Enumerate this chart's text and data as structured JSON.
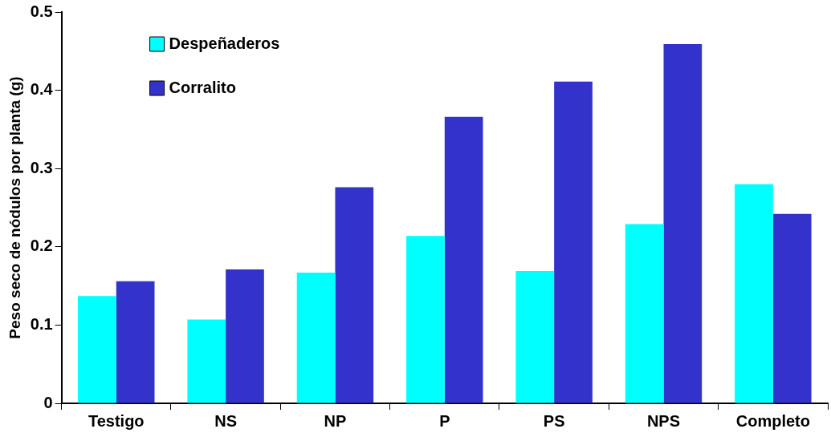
{
  "chart_data": {
    "type": "bar",
    "ylabel": "Peso seco de nódulos por planta (g)",
    "categories": [
      "Testigo",
      "NS",
      "NP",
      "P",
      "PS",
      "NPS",
      "Completo"
    ],
    "series": [
      {
        "name": "Despeñaderos",
        "color": "#00ffff",
        "values": [
          0.137,
          0.107,
          0.167,
          0.214,
          0.169,
          0.229,
          0.28
        ]
      },
      {
        "name": "Corralito",
        "color": "#3333cc",
        "values": [
          0.156,
          0.171,
          0.276,
          0.366,
          0.411,
          0.459,
          0.242
        ]
      }
    ],
    "ylim": [
      0,
      0.5
    ],
    "yticks": [
      0,
      0.1,
      0.2,
      0.3,
      0.4,
      0.5
    ],
    "grid": false,
    "legend": "top left"
  }
}
